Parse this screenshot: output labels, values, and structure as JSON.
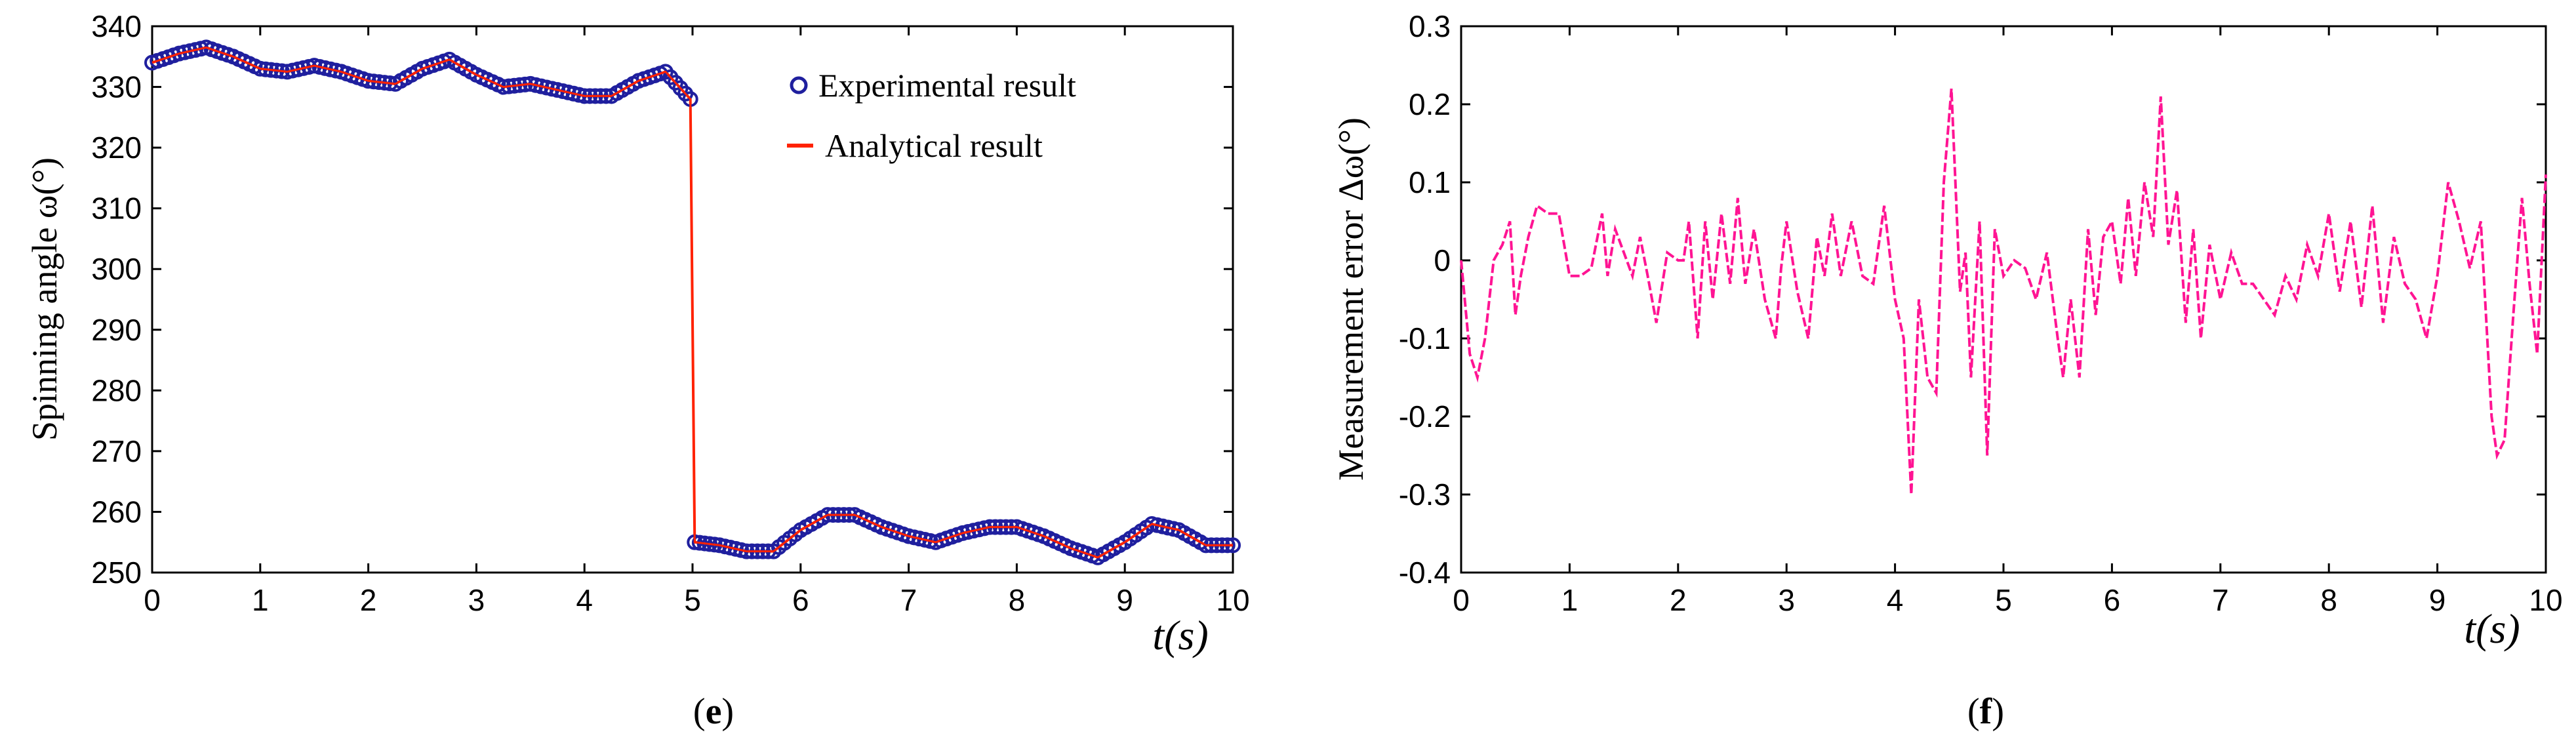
{
  "chart_data": [
    {
      "type": "line",
      "panel": "e",
      "ylabel": "Spinning angle ω(°)",
      "xlabel": "t(s)",
      "xlim": [
        0,
        10
      ],
      "ylim": [
        250,
        340
      ],
      "xticks": [
        0,
        1,
        2,
        3,
        4,
        5,
        6,
        7,
        8,
        9,
        10
      ],
      "yticks": [
        250,
        260,
        270,
        280,
        290,
        300,
        310,
        320,
        330,
        340
      ],
      "grid": false,
      "legend_position": "top-right",
      "legend": [
        "Experimental result",
        "Analytical result"
      ],
      "colors": {
        "experimental": "#1f1f9e",
        "analytical": "#ff2200"
      },
      "x": [
        0,
        0.25,
        0.5,
        0.75,
        1.0,
        1.25,
        1.5,
        1.75,
        2.0,
        2.25,
        2.5,
        2.75,
        3.0,
        3.25,
        3.5,
        3.75,
        4.0,
        4.25,
        4.5,
        4.75,
        4.98,
        5.02,
        5.25,
        5.5,
        5.75,
        6.0,
        6.25,
        6.5,
        6.75,
        7.0,
        7.25,
        7.5,
        7.75,
        8.0,
        8.25,
        8.5,
        8.75,
        9.0,
        9.25,
        9.5,
        9.75,
        10.0
      ],
      "series": [
        {
          "name": "Experimental result",
          "style": "markers",
          "values": [
            334,
            335.5,
            336.5,
            335,
            333,
            332.5,
            333.5,
            332.5,
            331,
            330.5,
            333,
            334.5,
            332,
            330,
            330.5,
            329.5,
            328.5,
            328.5,
            331,
            332.5,
            328,
            255,
            254.5,
            253.5,
            253.5,
            257,
            259.5,
            259.5,
            257.5,
            256,
            255,
            256.5,
            257.5,
            257.5,
            256,
            254,
            252.5,
            255,
            258,
            257,
            254.5,
            254.5
          ]
        },
        {
          "name": "Analytical result",
          "style": "line",
          "values": [
            334,
            335.5,
            336.5,
            335,
            333,
            332.5,
            333.5,
            332.5,
            331,
            330.5,
            333,
            334.5,
            332,
            330,
            330.5,
            329.5,
            328.5,
            328.5,
            331,
            332.5,
            328,
            255,
            254.5,
            253.5,
            253.5,
            257,
            259.5,
            259.5,
            257.5,
            256,
            255,
            256.5,
            257.5,
            257.5,
            256,
            254,
            252.5,
            255,
            258,
            257,
            254.5,
            254.5
          ]
        }
      ]
    },
    {
      "type": "line",
      "panel": "f",
      "ylabel": "Measurement error Δω(°)",
      "xlabel": "t(s)",
      "xlim": [
        0,
        10
      ],
      "ylim": [
        -0.4,
        0.3
      ],
      "xticks": [
        0,
        1,
        2,
        3,
        4,
        5,
        6,
        7,
        8,
        9,
        10
      ],
      "yticks": [
        -0.4,
        -0.3,
        -0.2,
        -0.1,
        0,
        0.1,
        0.2,
        0.3
      ],
      "ytick_labels": [
        "-0.4",
        "-0.3",
        "-0.2",
        "-0.1",
        "0",
        "0.1",
        "0.2",
        "0.3"
      ],
      "grid": false,
      "colors": {
        "line": "#ff1493"
      },
      "series": [
        {
          "name": "Measurement error",
          "x": [
            0,
            0.08,
            0.15,
            0.22,
            0.3,
            0.38,
            0.45,
            0.5,
            0.55,
            0.62,
            0.7,
            0.8,
            0.9,
            1.0,
            1.1,
            1.2,
            1.3,
            1.35,
            1.42,
            1.5,
            1.58,
            1.65,
            1.72,
            1.8,
            1.9,
            2.0,
            2.05,
            2.1,
            2.18,
            2.25,
            2.32,
            2.4,
            2.48,
            2.55,
            2.62,
            2.7,
            2.8,
            2.9,
            2.95,
            3.0,
            3.1,
            3.2,
            3.28,
            3.35,
            3.42,
            3.5,
            3.6,
            3.7,
            3.8,
            3.9,
            4.0,
            4.08,
            4.15,
            4.22,
            4.3,
            4.38,
            4.45,
            4.52,
            4.6,
            4.65,
            4.7,
            4.78,
            4.85,
            4.92,
            5.0,
            5.1,
            5.2,
            5.3,
            5.4,
            5.5,
            5.55,
            5.62,
            5.7,
            5.78,
            5.85,
            5.92,
            6.0,
            6.08,
            6.15,
            6.22,
            6.3,
            6.38,
            6.45,
            6.52,
            6.6,
            6.68,
            6.75,
            6.82,
            6.9,
            7.0,
            7.1,
            7.2,
            7.3,
            7.4,
            7.5,
            7.6,
            7.7,
            7.8,
            7.9,
            8.0,
            8.1,
            8.2,
            8.3,
            8.4,
            8.5,
            8.6,
            8.7,
            8.8,
            8.9,
            9.0,
            9.1,
            9.2,
            9.3,
            9.4,
            9.5,
            9.55,
            9.62,
            9.7,
            9.78,
            9.85,
            9.92,
            10.0
          ],
          "values": [
            0,
            -0.12,
            -0.15,
            -0.1,
            0,
            0.02,
            0.05,
            -0.07,
            -0.02,
            0.03,
            0.07,
            0.06,
            0.06,
            -0.02,
            -0.02,
            -0.01,
            0.06,
            -0.02,
            0.04,
            0.01,
            -0.02,
            0.03,
            -0.02,
            -0.08,
            0.01,
            0,
            0,
            0.05,
            -0.1,
            0.05,
            -0.05,
            0.06,
            -0.03,
            0.08,
            -0.03,
            0.04,
            -0.05,
            -0.1,
            -0.01,
            0.05,
            -0.04,
            -0.1,
            0.03,
            -0.02,
            0.06,
            -0.02,
            0.05,
            -0.02,
            -0.03,
            0.07,
            -0.05,
            -0.1,
            -0.3,
            -0.05,
            -0.15,
            -0.17,
            0.1,
            0.22,
            -0.04,
            0.01,
            -0.15,
            0.05,
            -0.25,
            0.04,
            -0.02,
            0,
            -0.01,
            -0.05,
            0.01,
            -0.1,
            -0.15,
            -0.05,
            -0.15,
            0.04,
            -0.07,
            0.03,
            0.05,
            -0.03,
            0.08,
            -0.02,
            0.1,
            0.03,
            0.21,
            0.02,
            0.09,
            -0.08,
            0.04,
            -0.1,
            0.02,
            -0.05,
            0.01,
            -0.03,
            -0.03,
            -0.05,
            -0.07,
            -0.02,
            -0.05,
            0.02,
            -0.02,
            0.06,
            -0.04,
            0.05,
            -0.06,
            0.07,
            -0.08,
            0.03,
            -0.03,
            -0.05,
            -0.1,
            -0.02,
            0.1,
            0.05,
            -0.01,
            0.05,
            -0.2,
            -0.25,
            -0.23,
            -0.07,
            0.08,
            -0.03,
            -0.12,
            0.11
          ]
        }
      ]
    }
  ],
  "labels": {
    "panel_e": "e",
    "panel_f": "f",
    "e_ylabel": "Spinning angle ω(°)",
    "f_ylabel": "Measurement error Δω(°)",
    "e_xlabel": "t(s)",
    "f_xlabel": "t(s)",
    "legend_experimental": "Experimental result",
    "legend_analytical": "Analytical result"
  }
}
